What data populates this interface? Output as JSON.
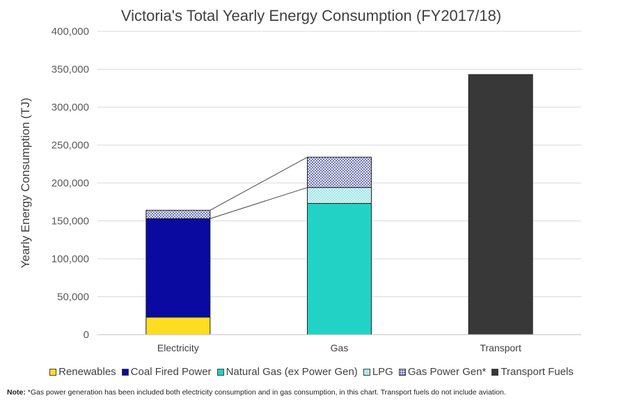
{
  "chart_data": {
    "type": "bar",
    "stacked": true,
    "title": "Victoria's Total Yearly Energy Consumption (FY2017/18)",
    "xlabel": "",
    "ylabel": "Yearly Energy Consumption (TJ)",
    "ylim": [
      0,
      400000
    ],
    "yticks": [
      0,
      50000,
      100000,
      150000,
      200000,
      250000,
      300000,
      350000,
      400000
    ],
    "ytick_labels": [
      "0",
      "50,000",
      "100,000",
      "150,000",
      "200,000",
      "250,000",
      "300,000",
      "350,000",
      "400,000"
    ],
    "categories": [
      "Electricity",
      "Gas",
      "Transport"
    ],
    "grid": true,
    "legend_position": "bottom",
    "series": [
      {
        "name": "Renewables",
        "color": "#FFDD22",
        "pattern": "solid",
        "values": [
          23000,
          0,
          0
        ]
      },
      {
        "name": "Coal Fired Power",
        "color": "#0A0AA0",
        "pattern": "solid",
        "values": [
          130000,
          0,
          0
        ]
      },
      {
        "name": "Natural Gas (ex Power Gen)",
        "color": "#22D3C5",
        "pattern": "solid",
        "values": [
          0,
          173000,
          0
        ]
      },
      {
        "name": "LPG",
        "color": "#CCF4F4",
        "pattern": "light-dots",
        "values": [
          0,
          21000,
          0
        ]
      },
      {
        "name": "Gas Power Gen*",
        "color": "#1A237E",
        "pattern": "dense-dots",
        "values": [
          11000,
          40000,
          0
        ]
      },
      {
        "name": "Transport Fuels",
        "color": "#383838",
        "pattern": "solid",
        "values": [
          0,
          0,
          343000
        ]
      }
    ]
  },
  "note": {
    "label": "Note:",
    "text": " *Gas power generation has been included both electricity consumption and in gas consumption, in this chart. Transport fuels do not include aviation."
  }
}
